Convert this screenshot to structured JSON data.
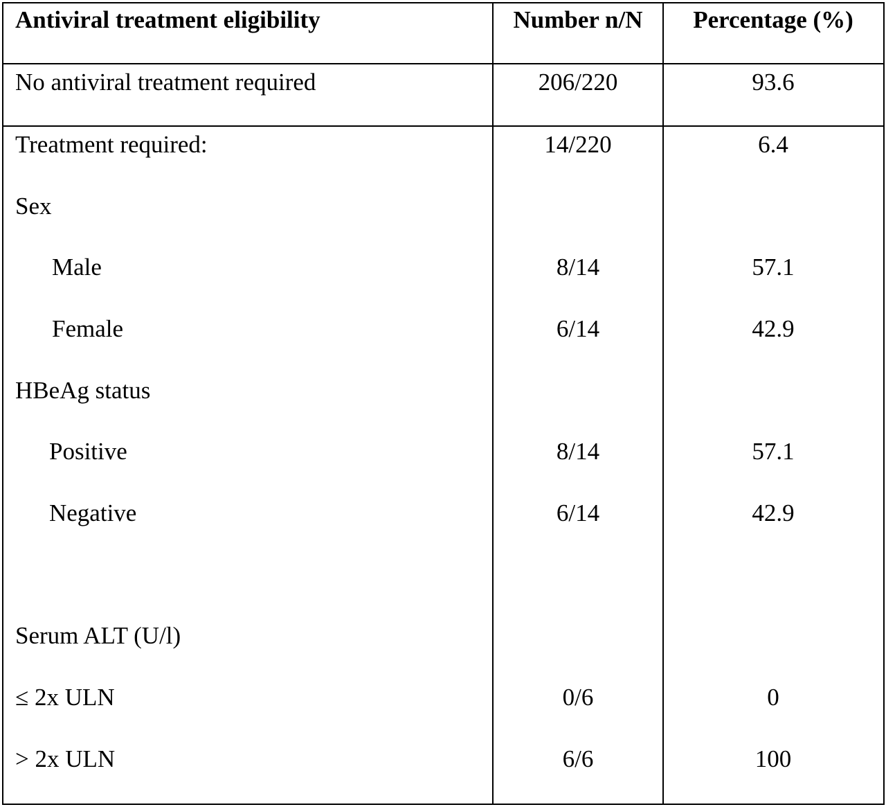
{
  "table": {
    "headers": [
      "Antiviral treatment eligibility",
      "Number n/N",
      "Percentage (%)"
    ],
    "rows": [
      {
        "label": "No antiviral treatment required",
        "n": "206/220",
        "pct": "93.6"
      },
      {
        "label": "Treatment required:",
        "n": "14/220",
        "pct": "6.4"
      },
      {
        "label": "Sex",
        "n": "",
        "pct": ""
      },
      {
        "label": "Male",
        "n": "8/14",
        "pct": "57.1"
      },
      {
        "label": "Female",
        "n": "6/14",
        "pct": "42.9"
      },
      {
        "label": "HBeAg status",
        "n": "",
        "pct": ""
      },
      {
        "label": "Positive",
        "n": "8/14",
        "pct": "57.1"
      },
      {
        "label": "Negative",
        "n": "6/14",
        "pct": "42.9"
      },
      {
        "label": "Serum ALT (U/l)",
        "n": "",
        "pct": ""
      },
      {
        "label": "≤ 2x ULN",
        "n": "0/6",
        "pct": "0"
      },
      {
        "label": "> 2x ULN",
        "n": "6/6",
        "pct": "100"
      }
    ]
  }
}
